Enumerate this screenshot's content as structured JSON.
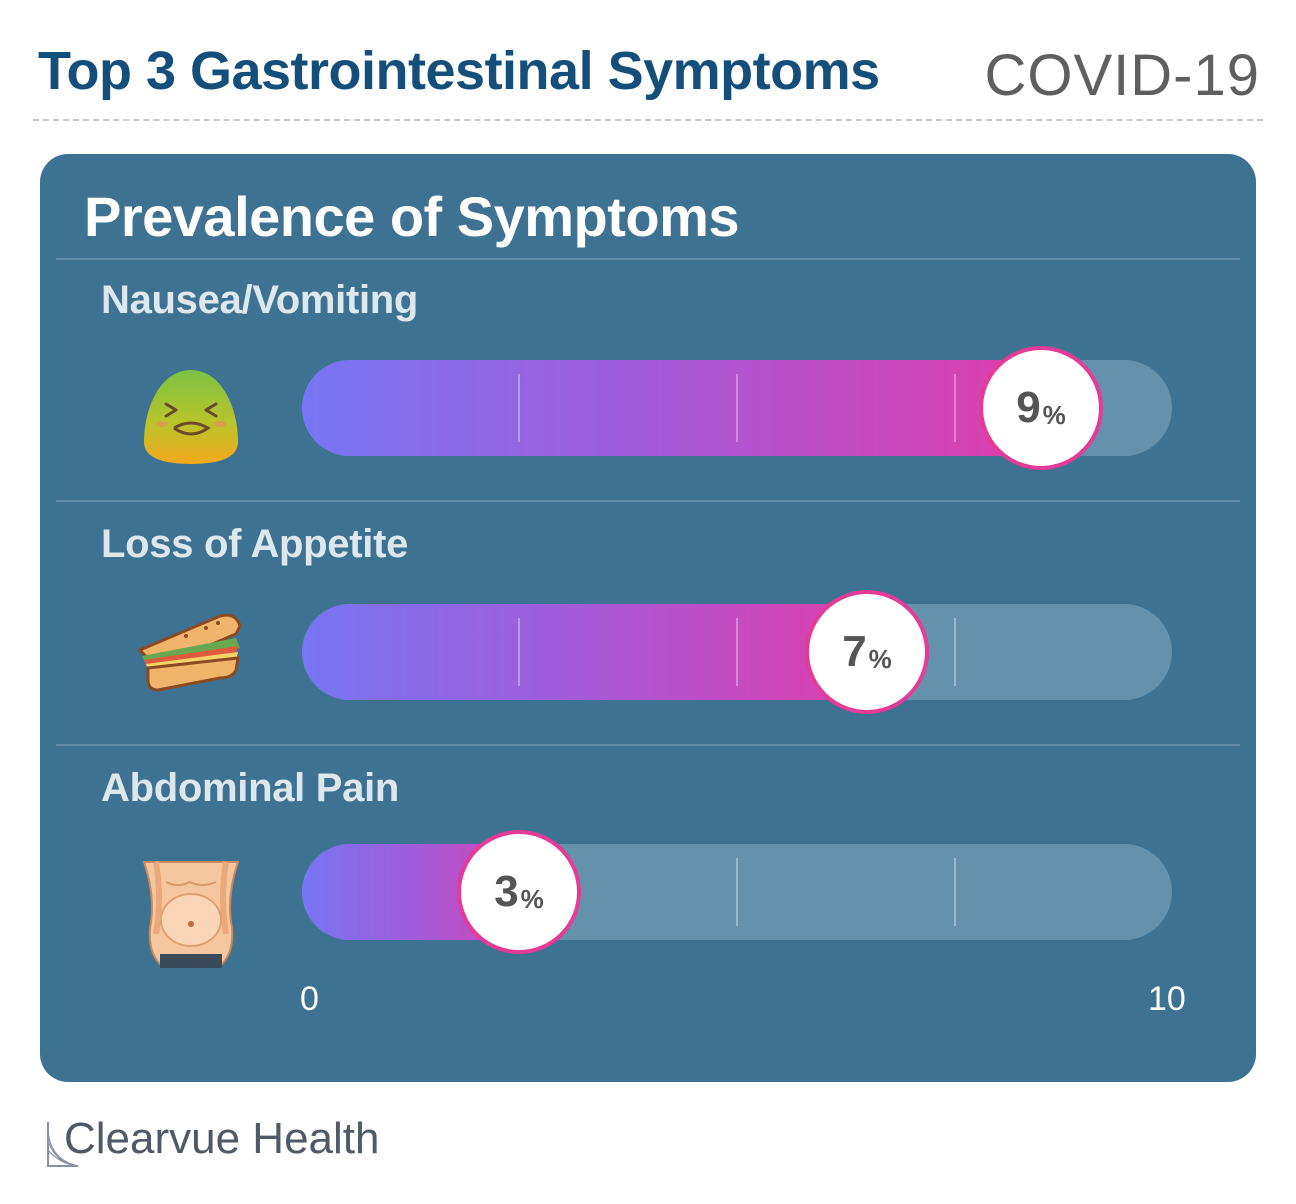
{
  "header": {
    "title": "Top 3 Gastrointestinal Symptoms",
    "subtitle": "COVID-19"
  },
  "chart_data": {
    "type": "bar",
    "title": "Prevalence of Symptoms",
    "categories": [
      "Nausea/Vomiting",
      "Loss of Appetite",
      "Abdominal Pain"
    ],
    "values": [
      9,
      7,
      3
    ],
    "unit": "%",
    "xlim": [
      0,
      10
    ],
    "x_tick_labels": [
      "0",
      "10"
    ],
    "icons": [
      "nauseated-face-icon",
      "sandwich-icon",
      "stomach-icon"
    ],
    "colors": {
      "gradient_start": "#7776f4",
      "gradient_end": "#e83aa6",
      "track": "#6492ad",
      "panel": "#3d7293"
    }
  },
  "footer": {
    "brand": "Clearvue Health"
  }
}
